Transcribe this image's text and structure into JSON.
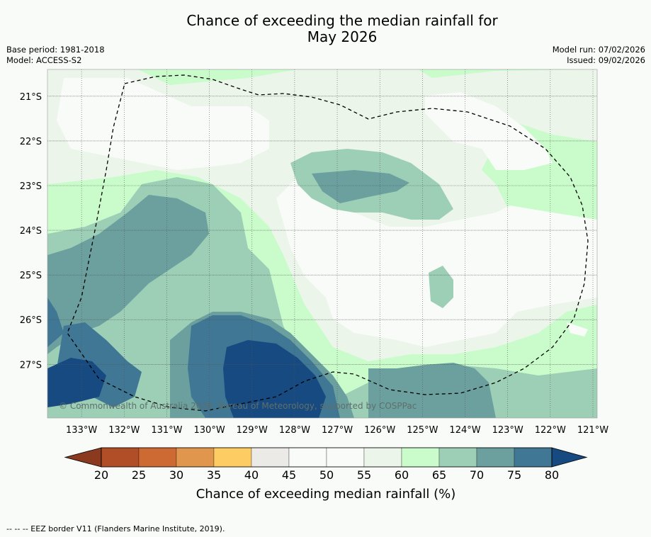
{
  "title_line1": "Chance of exceeding the median rainfall for",
  "title_line2": "May 2026",
  "meta_left": {
    "base_period": "Base period: 1981-2018",
    "model": "Model: ACCESS-S2"
  },
  "meta_right": {
    "model_run": "Model run: 07/02/2026",
    "issued": "Issued: 09/02/2026"
  },
  "copyright": "© Commonwealth of Australia 2026, Bureau of Meteorology, supported by COSPPac",
  "footer_note": "--  --  -- EEZ border V11 (Flanders Marine Institute, 2019).",
  "colorbar": {
    "label": "Chance of exceeding median rainfall (%)",
    "ticks": [
      "20",
      "25",
      "30",
      "35",
      "40",
      "45",
      "50",
      "55",
      "60",
      "65",
      "70",
      "75",
      "80"
    ],
    "under_color": "#8b3a1f",
    "over_color": "#174a80",
    "band_colors": [
      "#b14e28",
      "#cd6a33",
      "#e0964c",
      "#fdcd64",
      "#eceae6",
      "#f9fbf8",
      "#f9fbf8",
      "#ebf5ea",
      "#c9fcca",
      "#9dcfb7",
      "#6ba09f",
      "#3f7794"
    ]
  },
  "chart_data": {
    "type": "heatmap",
    "title": "Chance of exceeding the median rainfall for May 2026",
    "value_unit": "%",
    "lon_ticks": [
      "133°W",
      "132°W",
      "131°W",
      "130°W",
      "129°W",
      "128°W",
      "127°W",
      "126°W",
      "125°W",
      "124°W",
      "123°W",
      "122°W",
      "121°W"
    ],
    "lon_values": [
      -133,
      -132,
      -131,
      -130,
      -129,
      -128,
      -127,
      -126,
      -125,
      -124,
      -123,
      -122,
      -121
    ],
    "lat_ticks": [
      "21°S",
      "22°S",
      "23°S",
      "24°S",
      "25°S",
      "26°S",
      "27°S"
    ],
    "lat_values": [
      -21,
      -22,
      -23,
      -24,
      -25,
      -26,
      -27
    ],
    "xlim": [
      -133.8,
      -120.9
    ],
    "ylim": [
      -28.2,
      -20.4
    ],
    "levels": [
      20,
      25,
      30,
      35,
      40,
      45,
      50,
      55,
      60,
      65,
      70,
      75,
      80
    ],
    "background_level": 60,
    "regions": [
      {
        "level": 55,
        "label": "55-60%"
      },
      {
        "level": 50,
        "label": "50-55%"
      },
      {
        "level": 45,
        "label": "45-50%"
      },
      {
        "level": 65,
        "label": "65-70%"
      },
      {
        "level": 70,
        "label": "70-75%"
      },
      {
        "level": 75,
        "label": "75-80%"
      },
      {
        "level": 80,
        "label": ">80%"
      }
    ],
    "eez_border_style": "dashed"
  }
}
